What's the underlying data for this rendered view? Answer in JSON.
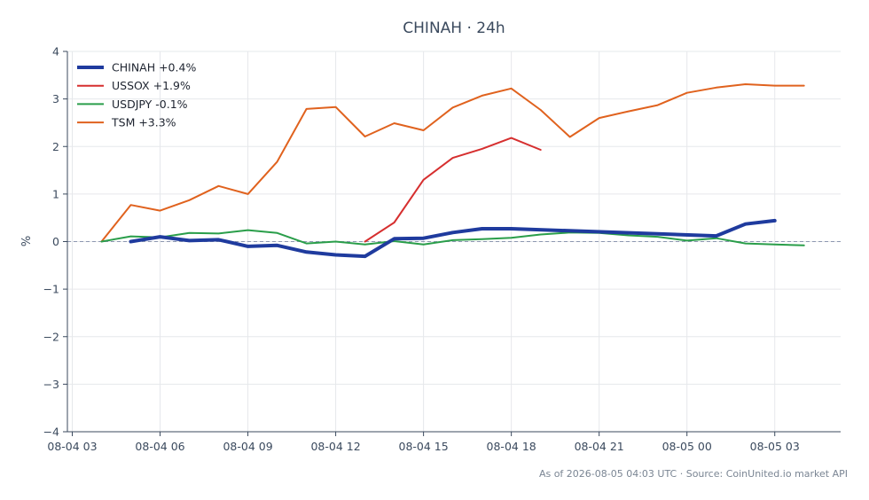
{
  "chart_data": {
    "type": "line",
    "title": "CHINAH · 24h",
    "xlabel": "",
    "ylabel": "%",
    "ylim": [
      -4,
      4
    ],
    "xlim": [
      "08-04 02:50",
      "08-05 05:15"
    ],
    "yticks": [
      4,
      3,
      2,
      1,
      0,
      -1,
      -2,
      -3,
      -4
    ],
    "ytick_labels": [
      "4",
      "3",
      "2",
      "1",
      "0",
      "−1",
      "−2",
      "−3",
      "−4"
    ],
    "xticks": [
      "08-04 03:00",
      "08-04 06:00",
      "08-04 09:00",
      "08-04 12:00",
      "08-04 15:00",
      "08-04 18:00",
      "08-04 21:00",
      "08-05 00:00",
      "08-05 03:00"
    ],
    "xtick_labels": [
      "08-04 03",
      "08-04 06",
      "08-04 09",
      "08-04 12",
      "08-04 15",
      "08-04 18",
      "08-04 21",
      "08-05 00",
      "08-05 03"
    ],
    "zero_line": true,
    "grid": true,
    "legend_position": "top-left",
    "series": [
      {
        "name": "CHINAH +0.4%",
        "color": "#1f3b9e",
        "width": 4,
        "x": [
          "08-04 05:00",
          "08-04 06:00",
          "08-04 07:00",
          "08-04 08:00",
          "08-04 09:00",
          "08-04 10:00",
          "08-04 11:00",
          "08-04 12:00",
          "08-04 13:00",
          "08-04 14:00",
          "08-04 15:00",
          "08-04 16:00",
          "08-04 17:00",
          "08-04 18:00",
          "08-05 01:00",
          "08-05 02:00",
          "08-05 03:00"
        ],
        "y": [
          0.0,
          0.1,
          0.02,
          0.04,
          -0.1,
          -0.08,
          -0.22,
          -0.28,
          -0.31,
          0.06,
          0.07,
          0.19,
          0.27,
          0.27,
          0.12,
          0.37,
          0.44
        ]
      },
      {
        "name": "USSOX +1.9%",
        "color": "#d62f2f",
        "width": 2,
        "x": [
          "08-04 13:00",
          "08-04 14:00",
          "08-04 15:00",
          "08-04 16:00",
          "08-04 17:00",
          "08-04 18:00",
          "08-04 19:00"
        ],
        "y": [
          0.0,
          0.4,
          1.3,
          1.76,
          1.95,
          2.18,
          1.93
        ]
      },
      {
        "name": "USDJPY -0.1%",
        "color": "#2a9e4a",
        "width": 2,
        "x": [
          "08-04 04:00",
          "08-04 05:00",
          "08-04 06:00",
          "08-04 07:00",
          "08-04 08:00",
          "08-04 09:00",
          "08-04 10:00",
          "08-04 11:00",
          "08-04 12:00",
          "08-04 13:00",
          "08-04 14:00",
          "08-04 15:00",
          "08-04 16:00",
          "08-04 17:00",
          "08-04 18:00",
          "08-04 19:00",
          "08-04 20:00",
          "08-04 21:00",
          "08-04 22:00",
          "08-04 23:00",
          "08-05 00:00",
          "08-05 01:00",
          "08-05 02:00",
          "08-05 03:00",
          "08-05 04:00"
        ],
        "y": [
          0.0,
          0.11,
          0.09,
          0.18,
          0.17,
          0.24,
          0.18,
          -0.04,
          0.0,
          -0.06,
          0.01,
          -0.06,
          0.03,
          0.05,
          0.08,
          0.15,
          0.19,
          0.18,
          0.13,
          0.1,
          0.02,
          0.07,
          -0.04,
          -0.06,
          -0.08
        ]
      },
      {
        "name": "TSM +3.3%",
        "color": "#e0621e",
        "width": 2,
        "x": [
          "08-04 04:00",
          "08-04 05:00",
          "08-04 06:00",
          "08-04 07:00",
          "08-04 08:00",
          "08-04 09:00",
          "08-04 10:00",
          "08-04 11:00",
          "08-04 12:00",
          "08-04 13:00",
          "08-04 14:00",
          "08-04 15:00",
          "08-04 16:00",
          "08-04 17:00",
          "08-04 18:00",
          "08-04 19:00",
          "08-04 20:00",
          "08-04 21:00",
          "08-04 22:00",
          "08-04 23:00",
          "08-05 00:00",
          "08-05 01:00",
          "08-05 02:00",
          "08-05 03:00",
          "08-05 04:00"
        ],
        "y": [
          0.0,
          0.77,
          0.65,
          0.87,
          1.17,
          1.0,
          1.68,
          2.79,
          2.83,
          2.21,
          2.49,
          2.34,
          2.82,
          3.07,
          3.22,
          2.77,
          2.2,
          2.6,
          2.74,
          2.87,
          3.13,
          3.24,
          3.31,
          3.28,
          3.28
        ]
      }
    ]
  },
  "footer": {
    "text": "As of 2026-08-05 04:03 UTC · Source: CoinUnited.io market API"
  }
}
